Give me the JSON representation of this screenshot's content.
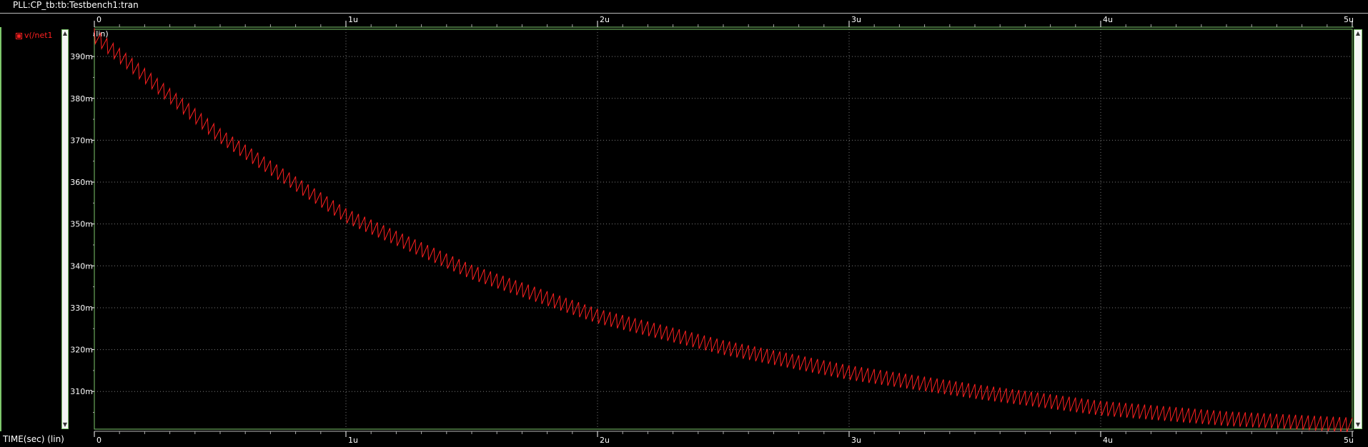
{
  "window": {
    "title": "PLL:CP_tb:tb:Testbench1:tran"
  },
  "legend": {
    "entries": [
      {
        "name": "v(/net1",
        "color": "#ff2020"
      }
    ]
  },
  "colors": {
    "trace": "#ff2020",
    "grid": "#7a7a7a",
    "frame": "#7ec86c",
    "background": "#000000"
  },
  "chart_data": {
    "type": "line",
    "title": "",
    "xlabel": "TIME(sec) (lin)",
    "ylabel": "(lin)",
    "x_ticks": [
      "0",
      "1u",
      "2u",
      "3u",
      "4u",
      "5u"
    ],
    "y_ticks": [
      "310m",
      "320m",
      "330m",
      "340m",
      "350m",
      "360m",
      "370m",
      "380m",
      "390m"
    ],
    "xlim": [
      0,
      5e-06
    ],
    "ylim": [
      301,
      396.5
    ],
    "grid": true,
    "series": [
      {
        "name": "v(/net1",
        "color": "#ff2020",
        "x_unit": "us",
        "y_unit": "mV",
        "x": [
          0,
          0.5,
          1.0,
          1.5,
          2.0,
          2.5,
          3.0,
          3.5,
          4.0,
          4.5,
          5.0
        ],
        "values": [
          395,
          371,
          352,
          338.5,
          328,
          320.5,
          314.5,
          310,
          306,
          303.5,
          302
        ],
        "ripple_amplitude_mV": 3.5,
        "ripple_cycles": 200
      }
    ]
  }
}
